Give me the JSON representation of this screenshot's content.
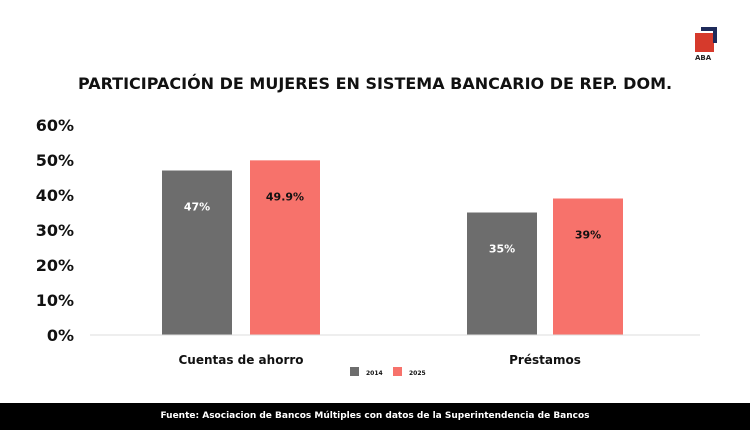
{
  "logo_text": "ABA",
  "footer": "Fuente: Asociacion de Bancos Múltiples con datos de la Superintendencia de Bancos",
  "chart_data": {
    "type": "bar",
    "title": "PARTICIPACIÓN DE MUJERES EN SISTEMA BANCARIO DE REP. DOM.",
    "categories": [
      "Cuentas de ahorro",
      "Préstamos"
    ],
    "series": [
      {
        "name": "2014",
        "values": [
          47,
          35
        ],
        "labels": [
          "47%",
          "35%"
        ],
        "color": "#6d6d6d"
      },
      {
        "name": "2025",
        "values": [
          49.9,
          39
        ],
        "labels": [
          "49.9%",
          "39%"
        ],
        "color": "#f7726b"
      }
    ],
    "ylim": [
      0,
      60
    ],
    "yticks": [
      "0%",
      "10%",
      "20%",
      "30%",
      "40%",
      "50%",
      "60%"
    ],
    "grid": false,
    "legend": "bottom"
  }
}
